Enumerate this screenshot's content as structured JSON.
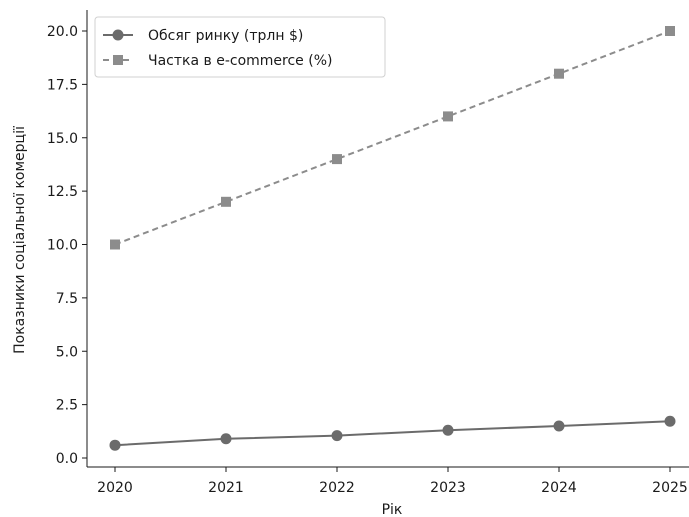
{
  "chart_data": {
    "type": "line",
    "title": "",
    "xlabel": "Рік",
    "ylabel": "Показники соціальної комерції",
    "x": [
      2020,
      2021,
      2022,
      2023,
      2024,
      2025
    ],
    "x_tick_labels": [
      "2020",
      "2021",
      "2022",
      "2023",
      "2024",
      "2025"
    ],
    "ylim": [
      0,
      20
    ],
    "y_ticks": [
      0,
      2.5,
      5,
      7.5,
      10,
      12.5,
      15,
      17.5,
      20
    ],
    "y_tick_labels": [
      "0.0",
      "2.5",
      "5.0",
      "7.5",
      "10.0",
      "12.5",
      "15.0",
      "17.5",
      "20.0"
    ],
    "grid": false,
    "legend_position": "top-left",
    "series": [
      {
        "name": "Обсяг ринку (трлн $)",
        "values": [
          0.6,
          0.9,
          1.05,
          1.3,
          1.5,
          1.72
        ],
        "color": "#6b6b6b",
        "line_style": "solid",
        "marker": "circle"
      },
      {
        "name": "Частка в e-commerce (%)",
        "values": [
          10,
          12,
          14,
          16,
          18,
          20
        ],
        "color": "#8c8c8c",
        "line_style": "dashed",
        "marker": "square"
      }
    ]
  }
}
